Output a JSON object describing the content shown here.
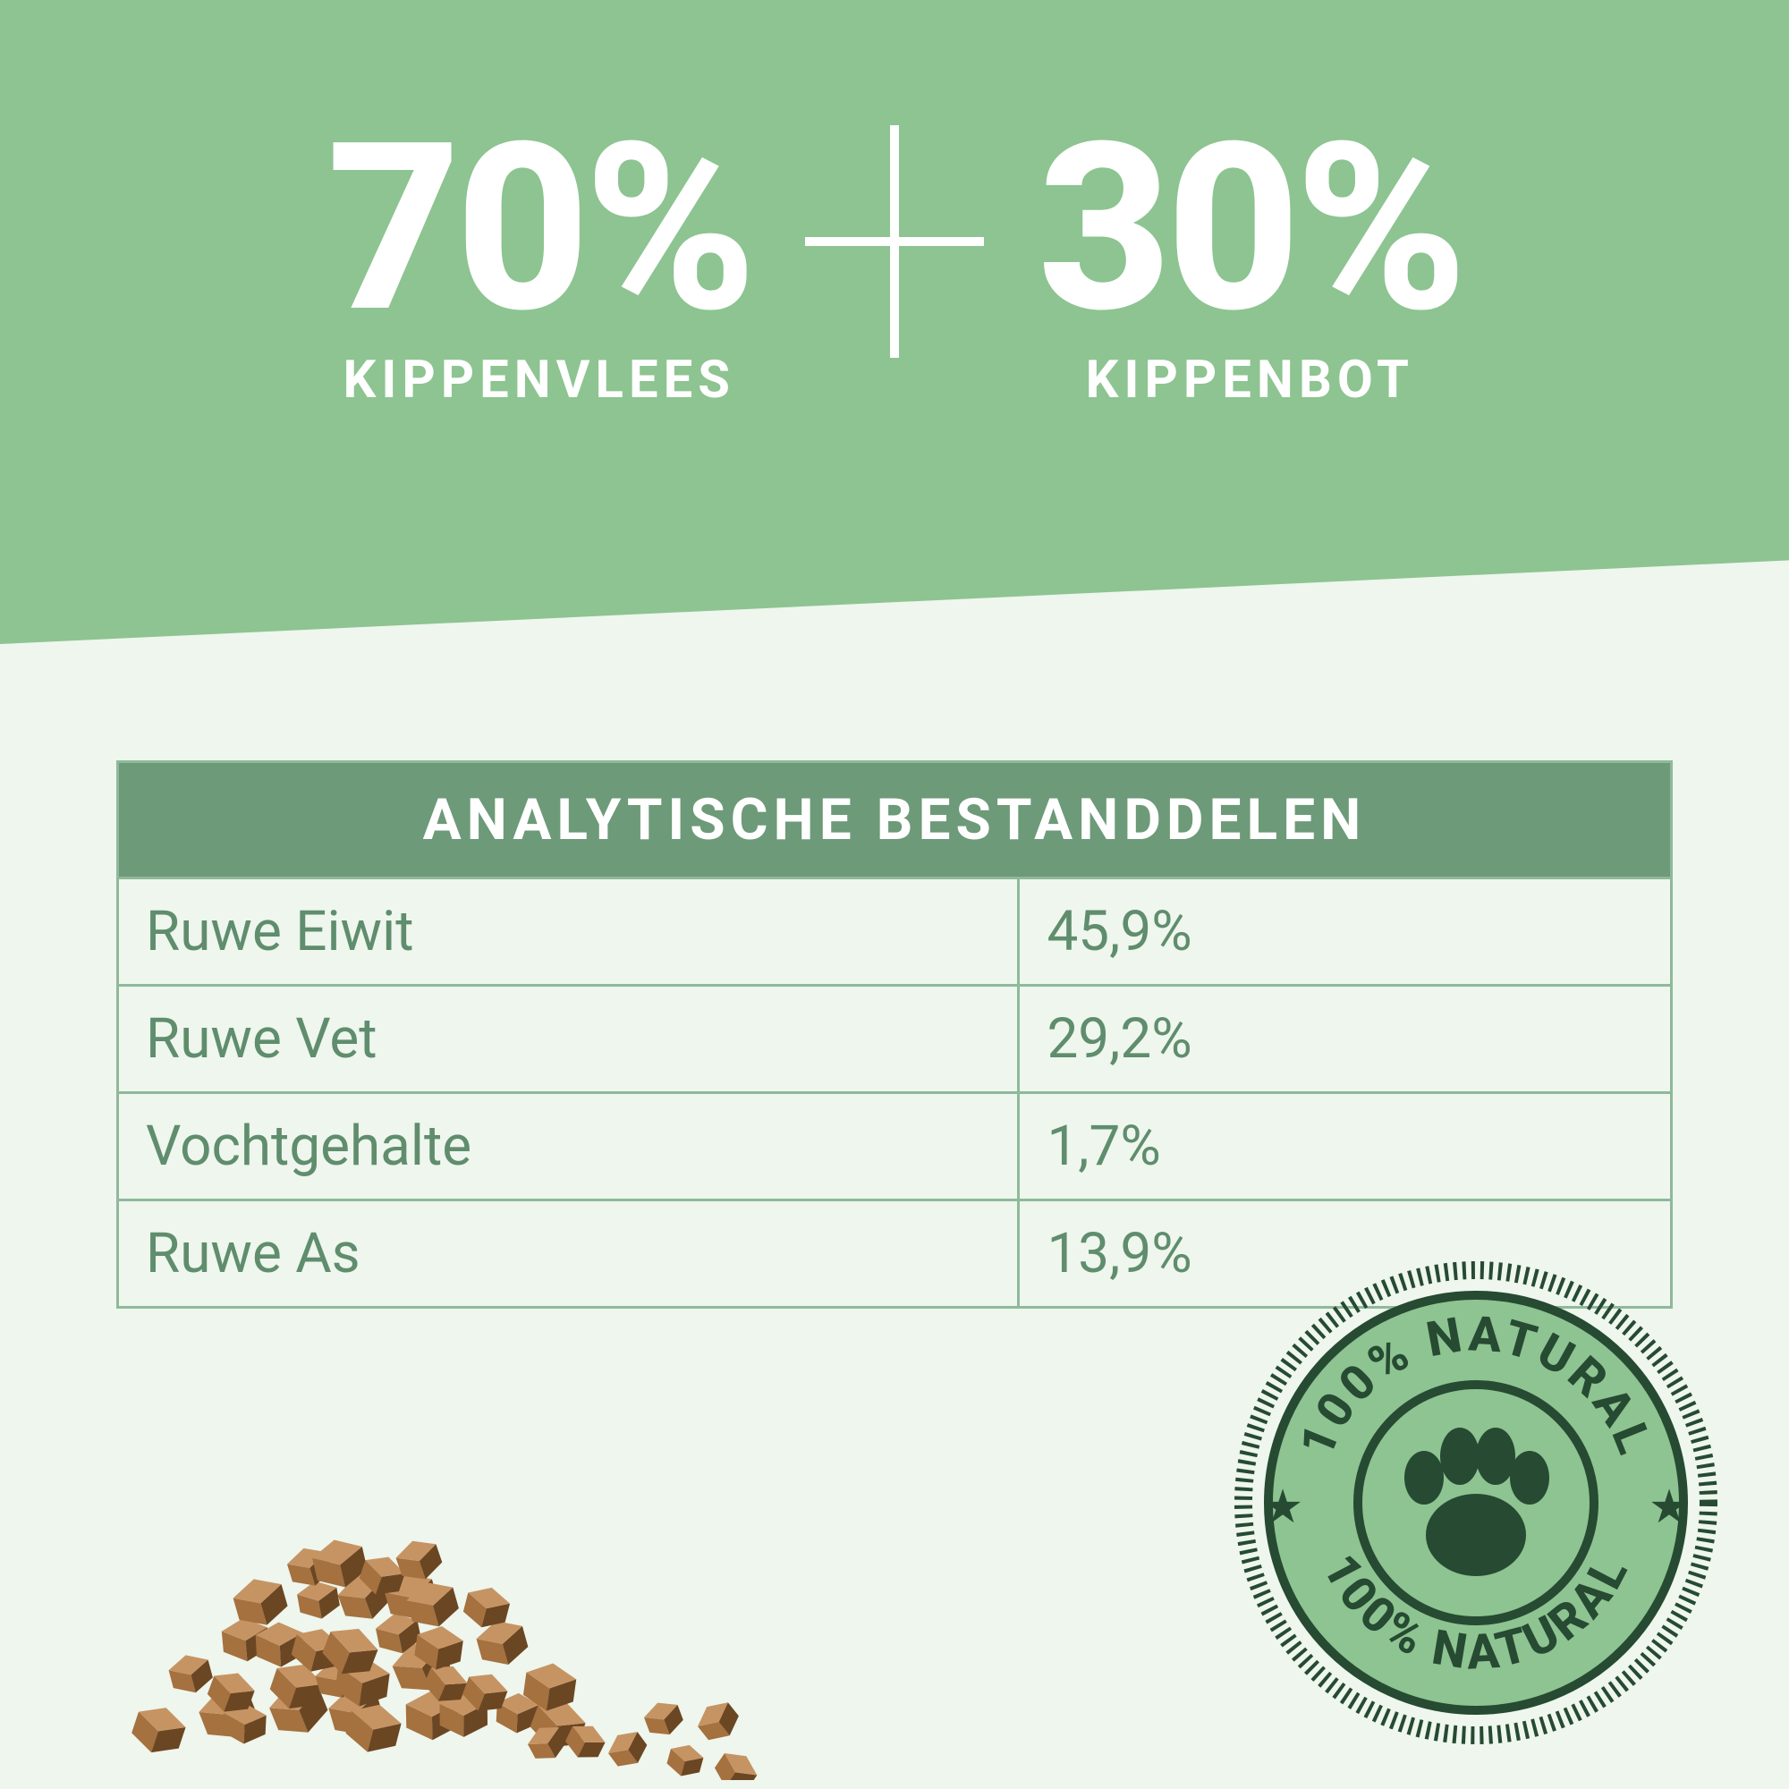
{
  "colors": {
    "header_bg": "#8dc491",
    "light_bg": "#eef6ed",
    "table_border": "#8fb99b",
    "table_header_bg": "#6d9a78",
    "table_text": "#5f8d6d",
    "badge_ink": "#264a32",
    "badge_fill": "#8dc491",
    "treat_light": "#c69463",
    "treat_mid": "#a4713f",
    "treat_dark": "#6b4623"
  },
  "composition": {
    "left": {
      "value": "70%",
      "label": "KIPPENVLEES"
    },
    "right": {
      "value": "30%",
      "label": "KIPPENBOT"
    }
  },
  "table": {
    "title": "ANALYTISCHE BESTANDDELEN",
    "rows": [
      {
        "name": "Ruwe Eiwit",
        "value": "45,9%"
      },
      {
        "name": "Ruwe Vet",
        "value": "29,2%"
      },
      {
        "name": "Vochtgehalte",
        "value": "1,7%"
      },
      {
        "name": "Ruwe As",
        "value": "13,9%"
      }
    ]
  },
  "badge": {
    "top_text": "100% NATURAL",
    "bottom_text": "100% NATURAL",
    "star": "★"
  }
}
